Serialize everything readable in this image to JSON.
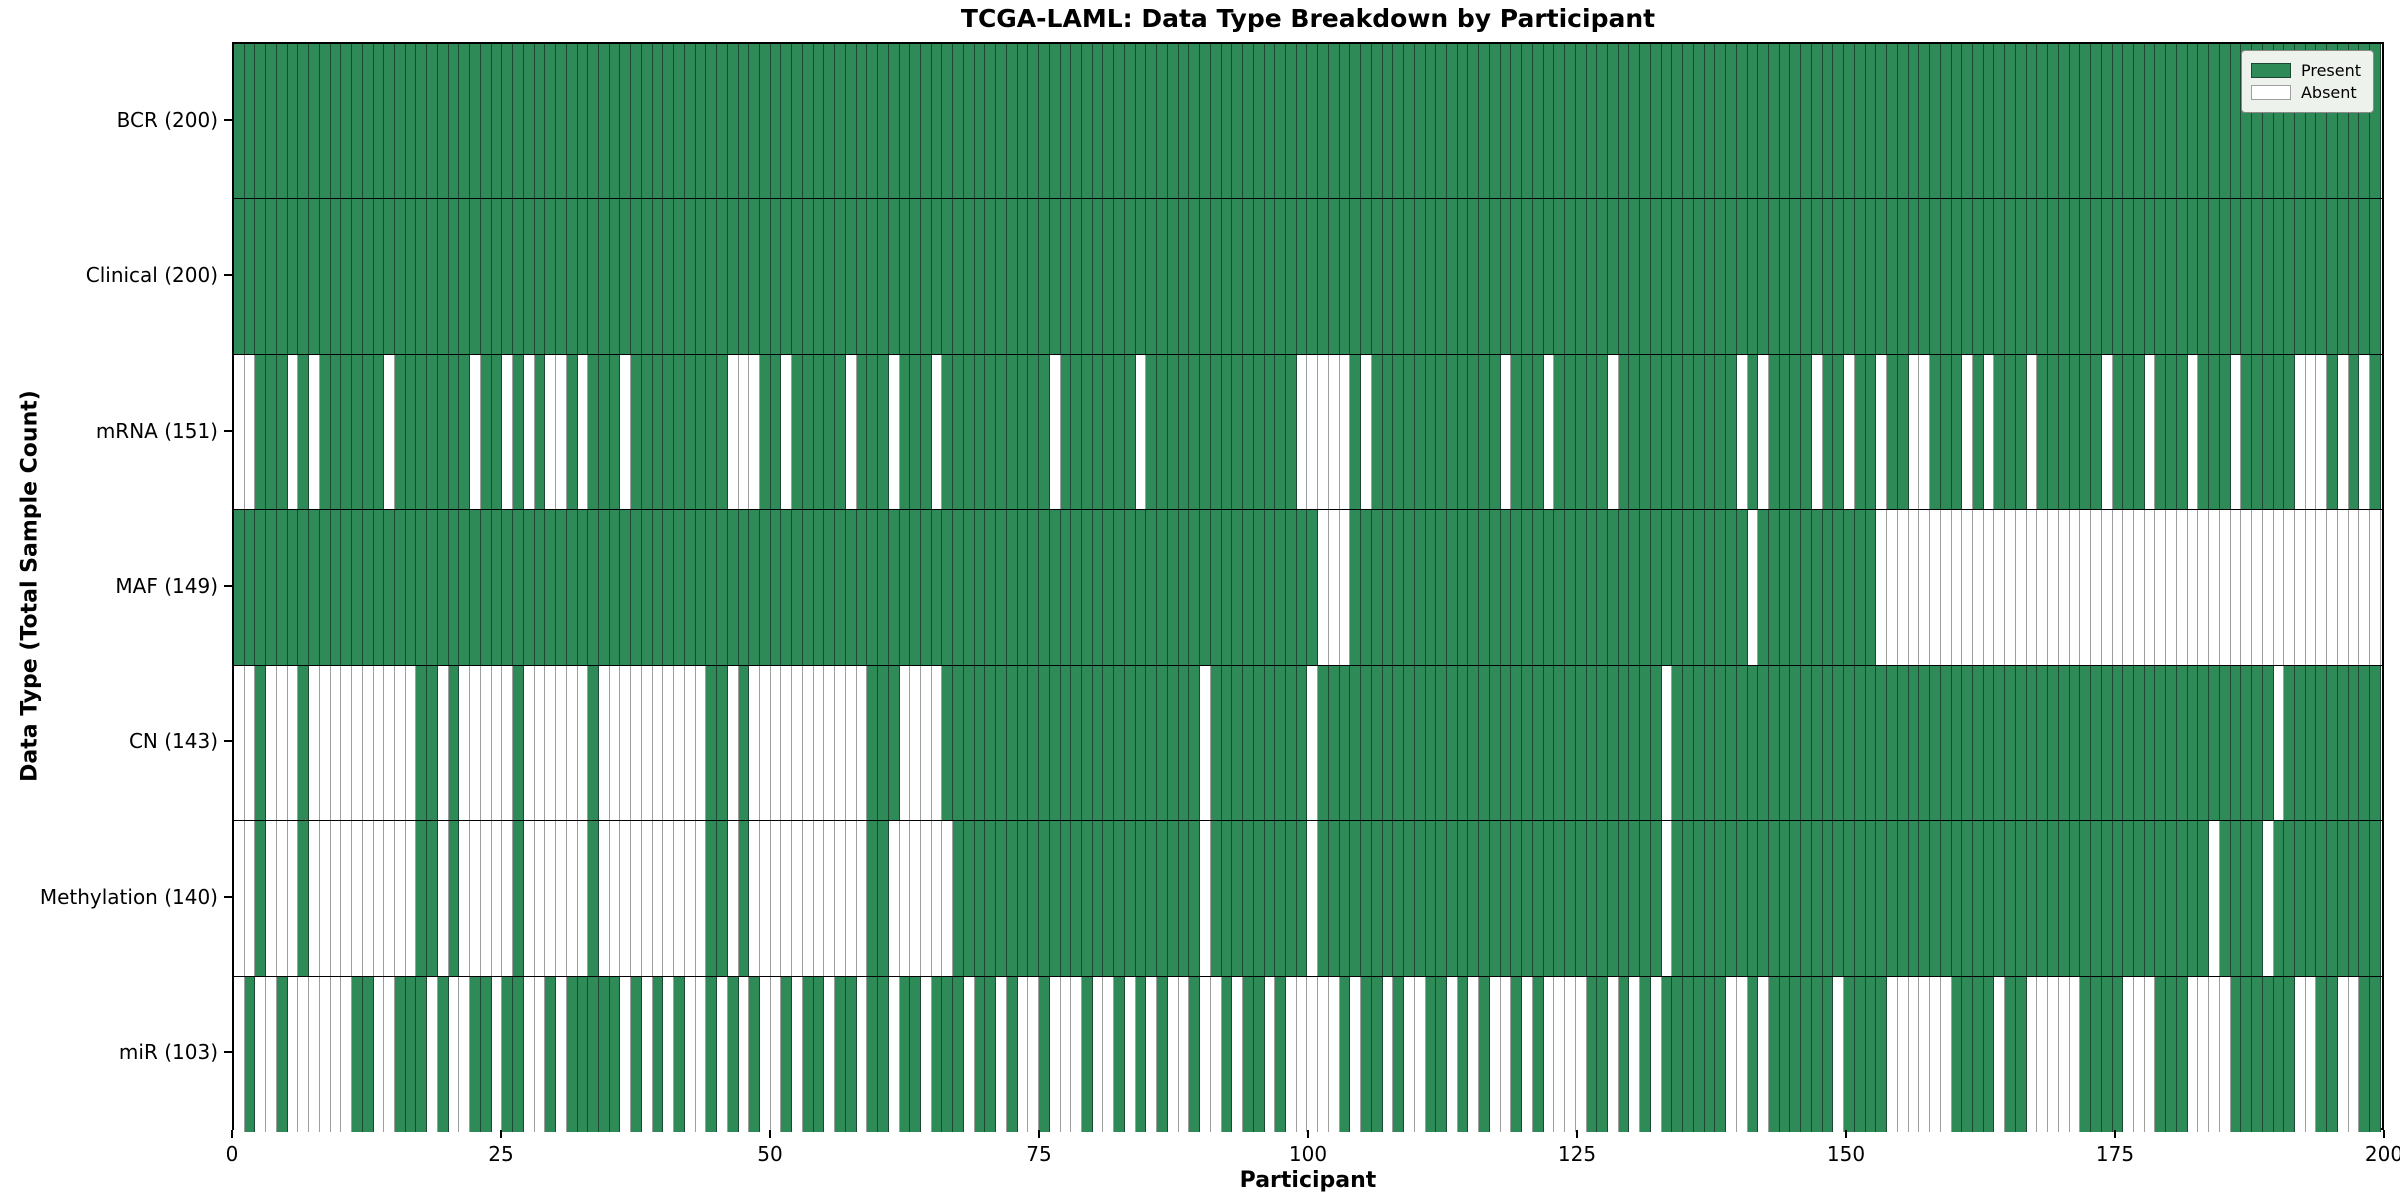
{
  "chart_data": {
    "type": "heatmap",
    "title": "TCGA-LAML: Data Type Breakdown by Participant",
    "xlabel": "Participant",
    "ylabel": "Data Type (Total Sample Count)",
    "x_range": [
      0,
      200
    ],
    "x_ticks": [
      "0",
      "25",
      "50",
      "75",
      "100",
      "125",
      "150",
      "175",
      "200"
    ],
    "n_participants": 200,
    "grid": "cell-borders",
    "legend_position": "upper-right",
    "legend": [
      {
        "label": "Present",
        "color": "#2e8b57"
      },
      {
        "label": "Absent",
        "color": "#ffffff"
      }
    ],
    "colors": {
      "present": "#2e8b57",
      "absent": "#ffffff",
      "present_edge": "#1b4733",
      "absent_edge": "#9e9e9e",
      "row_separator": "#000000"
    },
    "rows": [
      {
        "name": "BCR",
        "present_count": 200,
        "tick_label": "BCR (200)",
        "absent": []
      },
      {
        "name": "Clinical",
        "present_count": 200,
        "tick_label": "Clinical (200)",
        "absent": []
      },
      {
        "name": "mRNA",
        "present_count": 151,
        "tick_label": "mRNA (151)",
        "absent": [
          0,
          1,
          5,
          7,
          14,
          22,
          25,
          27,
          29,
          30,
          32,
          36,
          46,
          47,
          48,
          51,
          57,
          61,
          65,
          76,
          84,
          99,
          100,
          101,
          102,
          103,
          105,
          118,
          122,
          128,
          140,
          142,
          147,
          150,
          153,
          156,
          157,
          161,
          163,
          167,
          174,
          178,
          182,
          186,
          192,
          193,
          194,
          196,
          198
        ]
      },
      {
        "name": "MAF",
        "present_count": 149,
        "tick_label": "MAF (149)",
        "absent": [
          101,
          102,
          103,
          141,
          153,
          154,
          155,
          156,
          157,
          158,
          159,
          160,
          161,
          162,
          163,
          164,
          165,
          166,
          167,
          168,
          169,
          170,
          171,
          172,
          173,
          174,
          175,
          176,
          177,
          178,
          179,
          180,
          181,
          182,
          183,
          184,
          185,
          186,
          187,
          188,
          189,
          190,
          191,
          192,
          193,
          194,
          195,
          196,
          197,
          198,
          199
        ]
      },
      {
        "name": "CN",
        "present_count": 143,
        "tick_label": "CN (143)",
        "absent": [
          0,
          1,
          3,
          4,
          5,
          7,
          8,
          9,
          10,
          11,
          12,
          13,
          14,
          15,
          16,
          19,
          21,
          22,
          23,
          24,
          25,
          27,
          28,
          29,
          30,
          31,
          32,
          34,
          35,
          36,
          37,
          38,
          39,
          40,
          41,
          42,
          43,
          46,
          48,
          49,
          50,
          51,
          52,
          53,
          54,
          55,
          56,
          57,
          58,
          62,
          63,
          64,
          65,
          90,
          100,
          133,
          190
        ]
      },
      {
        "name": "Methylation",
        "present_count": 140,
        "tick_label": "Methylation (140)",
        "absent": [
          0,
          1,
          3,
          4,
          5,
          7,
          8,
          9,
          10,
          11,
          12,
          13,
          14,
          15,
          16,
          19,
          21,
          22,
          23,
          24,
          25,
          27,
          28,
          29,
          30,
          31,
          32,
          34,
          35,
          36,
          37,
          38,
          39,
          40,
          41,
          42,
          43,
          46,
          48,
          49,
          50,
          51,
          52,
          53,
          54,
          55,
          56,
          57,
          58,
          61,
          62,
          63,
          64,
          65,
          66,
          90,
          100,
          133,
          184,
          189
        ]
      },
      {
        "name": "miR",
        "present_count": 103,
        "tick_label": "miR (103)",
        "absent": [
          0,
          2,
          3,
          5,
          6,
          7,
          8,
          9,
          10,
          13,
          14,
          18,
          20,
          21,
          24,
          27,
          28,
          30,
          36,
          38,
          40,
          42,
          43,
          45,
          47,
          49,
          50,
          52,
          55,
          58,
          61,
          64,
          68,
          71,
          73,
          74,
          76,
          77,
          78,
          80,
          81,
          83,
          85,
          87,
          88,
          90,
          91,
          93,
          96,
          98,
          99,
          100,
          101,
          102,
          104,
          107,
          109,
          110,
          113,
          115,
          117,
          118,
          120,
          122,
          123,
          124,
          125,
          128,
          130,
          132,
          139,
          140,
          142,
          149,
          154,
          155,
          156,
          157,
          158,
          159,
          164,
          167,
          168,
          169,
          170,
          171,
          176,
          177,
          178,
          182,
          183,
          184,
          185,
          192,
          193,
          196,
          197
        ]
      }
    ]
  }
}
